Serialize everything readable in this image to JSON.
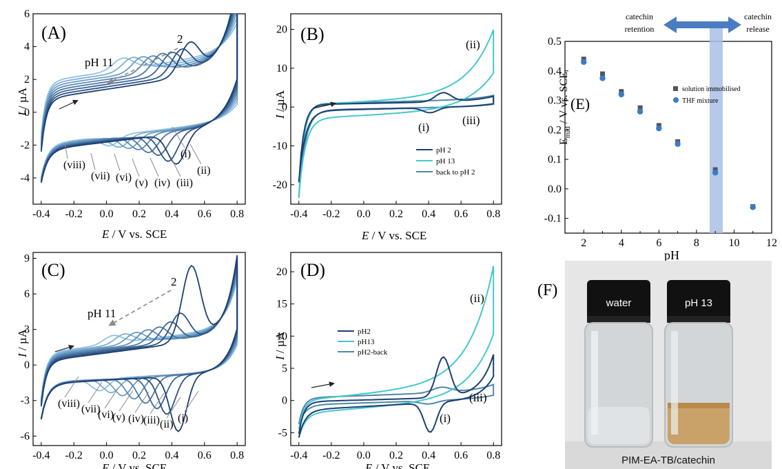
{
  "colors": {
    "dark": "#1b3f73",
    "mid": "#2c6aa6",
    "light": "#8fc2e6",
    "cyan": "#45c7cf",
    "steel": "#4f86a8",
    "grey_arrow": "#8a8a8a",
    "band": "#a9bfe6",
    "marker_square": "#555555",
    "marker_circle": "#3a7cc8",
    "double_arrow": "#4a7cc4"
  },
  "panels": {
    "A": {
      "label": "(A)",
      "xlabel_I": "E",
      "xlabel_rest": " / V vs. SCE",
      "ylabel_I": "I",
      "ylabel_rest": " / µA",
      "xticks": [
        "-0.4",
        "-0.2",
        "0.0",
        "0.2",
        "0.4",
        "0.6",
        "0.8"
      ],
      "yticks": [
        "6",
        "4",
        "2",
        "0",
        "-2",
        "-4"
      ],
      "annotation_ph": "pH 11",
      "annotation_2": "2",
      "roman": [
        "(i)",
        "(ii)",
        "(iii)",
        "(iv)",
        "(v)",
        "(vi)",
        "(vii)",
        "(viii)"
      ]
    },
    "B": {
      "label": "(B)",
      "xlabel_I": "E",
      "xlabel_rest": " / V vs. SCE",
      "ylabel_I": "I",
      "ylabel_rest": " / µA",
      "xticks": [
        "-0.4",
        "-0.2",
        "0.0",
        "0.2",
        "0.4",
        "0.6",
        "0.8"
      ],
      "yticks": [
        "20",
        "10",
        "0",
        "-10",
        "-20"
      ],
      "marks": [
        "(ii)",
        "(iii)",
        "(i)"
      ],
      "legend": [
        "pH 2",
        "pH 13",
        "back to pH 2"
      ]
    },
    "C": {
      "label": "(C)",
      "xlabel_I": "E",
      "xlabel_rest": " / V vs. SCE",
      "ylabel_I": "I",
      "ylabel_rest": " / µA",
      "xticks": [
        "-0.4",
        "-0.2",
        "0.0",
        "0.2",
        "0.4",
        "0.6",
        "0.8"
      ],
      "yticks": [
        "9",
        "6",
        "3",
        "0",
        "-3",
        "-6"
      ],
      "annotation_ph": "pH 11",
      "annotation_2": "2",
      "roman": [
        "(i)",
        "(ii)",
        "(iii)",
        "(iv)",
        "(v)",
        "(vi)",
        "(vii)",
        "(viii)"
      ]
    },
    "D": {
      "label": "(D)",
      "xlabel_I": "E",
      "xlabel_rest": " / V vs. SCE",
      "ylabel_I": "I",
      "ylabel_rest": " / µA",
      "xticks": [
        "-0.4",
        "-0.2",
        "0.0",
        "0.2",
        "0.4",
        "0.6",
        "0.8"
      ],
      "yticks": [
        "20",
        "15",
        "10",
        "5",
        "0",
        "-5"
      ],
      "marks": [
        "(ii)",
        "(iii)",
        "(i)"
      ],
      "legend": [
        "pH2",
        "pH13",
        "pH2-back"
      ]
    },
    "E": {
      "label": "(E)",
      "ylabel": "E",
      "ylabel_sub": "mid",
      "ylabel_rest": " / V vs. SCE",
      "xlabel": "pH",
      "xticks": [
        "2",
        "4",
        "6",
        "8",
        "10",
        "12"
      ],
      "yticks": [
        "0.5",
        "0.4",
        "0.3",
        "0.2",
        "0.1",
        "0.0",
        "-0.1"
      ],
      "legend": [
        "solution immobilised",
        "THF mixture"
      ],
      "top_left": [
        "catechin",
        "retention"
      ],
      "top_right": [
        "catechin",
        "release"
      ]
    },
    "F": {
      "label": "(F)",
      "vial_left": "water",
      "vial_right": "pH 13",
      "caption": "PIM-EA-TB/catechin"
    }
  },
  "chart_data": [
    {
      "type": "line",
      "panel": "A",
      "xlabel": "E / V vs. SCE",
      "ylabel": "I / µA",
      "xlim": [
        -0.45,
        0.85
      ],
      "ylim": [
        -5.6,
        6
      ],
      "series_count": 8,
      "peak_potentials": [
        0.48,
        0.43,
        0.37,
        0.31,
        0.25,
        0.19,
        0.13,
        0.07
      ],
      "oxidation_peaks": [
        3.5,
        3.1,
        2.9,
        2.8,
        2.6,
        2.5,
        2.4,
        2.3
      ],
      "reduction_peaks": [
        -3.2,
        -3.0,
        -2.6,
        -2.4,
        -2.2,
        -2.1,
        -2.0,
        -1.9
      ]
    },
    {
      "type": "line",
      "panel": "B",
      "xlabel": "E / V vs. SCE",
      "ylabel": "I / µA",
      "xlim": [
        -0.45,
        0.85
      ],
      "ylim": [
        -25,
        24
      ],
      "series": [
        {
          "name": "pH 2",
          "peak_ox": 3.0,
          "peak_red": -1.8,
          "end_current": 2.0
        },
        {
          "name": "pH 13",
          "end_current": 22
        },
        {
          "name": "back to pH 2",
          "end_current": 2.0
        }
      ]
    },
    {
      "type": "line",
      "panel": "C",
      "xlabel": "E / V vs. SCE",
      "ylabel": "I / µA",
      "xlim": [
        -0.45,
        0.85
      ],
      "ylim": [
        -6.8,
        9.5
      ],
      "series_count": 8,
      "peak_potentials": [
        0.49,
        0.42,
        0.36,
        0.29,
        0.22,
        0.15,
        0.08,
        0.01
      ],
      "oxidation_peaks": [
        7.5,
        3.6,
        2.9,
        2.5,
        2.3,
        2.1,
        2.0,
        1.9
      ],
      "reduction_peaks": [
        -5.5,
        -4.0,
        -3.5,
        -3.0,
        -2.6,
        -2.3,
        -2.0,
        -1.8
      ]
    },
    {
      "type": "line",
      "panel": "D",
      "xlabel": "E / V vs. SCE",
      "ylabel": "I / µA",
      "xlim": [
        -0.45,
        0.85
      ],
      "ylim": [
        -7,
        23
      ],
      "series": [
        {
          "name": "pH2",
          "peak_ox": 7.5,
          "peak_red": -5.5,
          "end_current": 9.0
        },
        {
          "name": "pH13",
          "end_current": 22.5
        },
        {
          "name": "pH2-back",
          "end_current": 2.0
        }
      ]
    },
    {
      "type": "scatter",
      "panel": "E",
      "xlabel": "pH",
      "ylabel": "Emid / V vs. SCE",
      "xlim": [
        1,
        12
      ],
      "ylim": [
        -0.15,
        0.5
      ],
      "series": [
        {
          "name": "solution immobilised",
          "x": [
            2,
            3,
            4,
            5,
            6,
            7,
            9,
            11
          ],
          "y": [
            0.44,
            0.39,
            0.33,
            0.275,
            0.215,
            0.16,
            0.065,
            -0.06
          ]
        },
        {
          "name": "THF mixture",
          "x": [
            2,
            3,
            4,
            5,
            6,
            7,
            9,
            11
          ],
          "y": [
            0.43,
            0.375,
            0.32,
            0.262,
            0.205,
            0.152,
            0.055,
            -0.062
          ]
        }
      ],
      "shaded_band_x": [
        8.7,
        9.4
      ]
    }
  ]
}
